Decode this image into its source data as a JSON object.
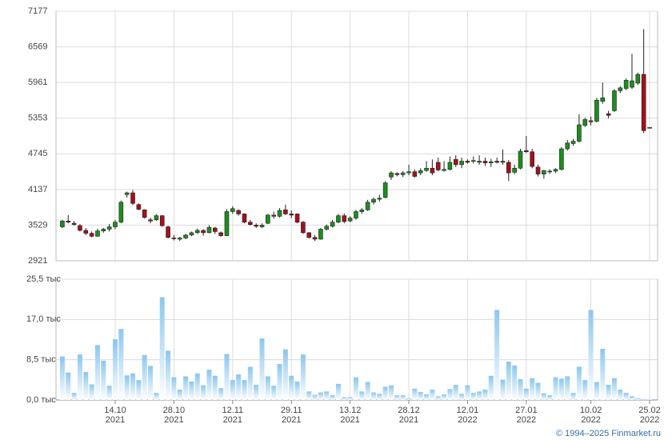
{
  "chart_data": {
    "type": "candlestick",
    "categories": [
      null,
      null,
      null,
      null,
      null,
      null,
      null,
      null,
      null,
      [
        "14.10",
        "2021"
      ],
      null,
      null,
      null,
      null,
      null,
      null,
      null,
      null,
      null,
      [
        "28.10",
        "2021"
      ],
      null,
      null,
      null,
      null,
      null,
      null,
      null,
      null,
      null,
      [
        "12.11",
        "2021"
      ],
      null,
      null,
      null,
      null,
      null,
      null,
      null,
      null,
      null,
      [
        "29.11",
        "2021"
      ],
      null,
      null,
      null,
      null,
      null,
      null,
      null,
      null,
      null,
      [
        "13.12",
        "2021"
      ],
      null,
      null,
      null,
      null,
      null,
      null,
      null,
      null,
      null,
      [
        "28.12",
        "2021"
      ],
      null,
      null,
      null,
      null,
      null,
      null,
      null,
      null,
      null,
      [
        "12.01",
        "2022"
      ],
      null,
      null,
      null,
      null,
      null,
      null,
      null,
      null,
      null,
      [
        "27.01",
        "2022"
      ],
      null,
      null,
      null,
      null,
      null,
      null,
      null,
      null,
      null,
      null,
      [
        "10.02",
        "2022"
      ],
      null,
      null,
      null,
      null,
      null,
      null,
      null,
      null,
      null,
      [
        "25.02",
        "2022"
      ]
    ],
    "open": [
      3500,
      3600,
      3560,
      3520,
      3440,
      3390,
      3340,
      3430,
      3460,
      3500,
      3580,
      4050,
      4080,
      3880,
      3790,
      3620,
      3620,
      3690,
      3500,
      3310,
      3290,
      3310,
      3360,
      3400,
      3440,
      3400,
      3480,
      3400,
      3350,
      3760,
      3780,
      3720,
      3580,
      3530,
      3500,
      3560,
      3700,
      3680,
      3790,
      3720,
      3720,
      3580,
      3400,
      3320,
      3290,
      3460,
      3510,
      3580,
      3690,
      3600,
      3650,
      3760,
      3790,
      3920,
      3970,
      4000,
      4350,
      4410,
      4390,
      4420,
      4440,
      4420,
      4460,
      4500,
      4600,
      4460,
      4480,
      4650,
      4560,
      4620,
      4620,
      4600,
      4620,
      4590,
      4620,
      4600,
      4600,
      4430,
      4500,
      4800,
      4780,
      4520,
      4400,
      4440,
      4450,
      4480,
      4830,
      4920,
      4960,
      5230,
      5310,
      5300,
      5640,
      5430,
      5480,
      5820,
      5860,
      5880,
      5950,
      6100,
      5190
    ],
    "high": [
      3620,
      3700,
      3600,
      3550,
      3480,
      3420,
      3470,
      3480,
      3550,
      3620,
      3950,
      4100,
      4130,
      3900,
      3800,
      3660,
      3720,
      3700,
      3520,
      3360,
      3330,
      3380,
      3420,
      3470,
      3460,
      3530,
      3500,
      3420,
      3800,
      3850,
      3800,
      3730,
      3620,
      3560,
      3560,
      3720,
      3760,
      3820,
      3880,
      3780,
      3730,
      3600,
      3410,
      3360,
      3480,
      3540,
      3620,
      3720,
      3730,
      3680,
      3790,
      3820,
      3960,
      4000,
      4050,
      4280,
      4450,
      4430,
      4450,
      4560,
      4480,
      4500,
      4620,
      4650,
      4680,
      4620,
      4700,
      4720,
      4680,
      4650,
      4700,
      4720,
      4680,
      4660,
      4680,
      4820,
      4640,
      4560,
      4830,
      5050,
      4830,
      4560,
      4470,
      4480,
      4500,
      4860,
      4980,
      5000,
      5420,
      5360,
      5380,
      5700,
      5960,
      5480,
      5850,
      5900,
      6030,
      6450,
      6130,
      6870,
      5200
    ],
    "low": [
      3480,
      3560,
      3520,
      3420,
      3360,
      3320,
      3330,
      3400,
      3420,
      3460,
      3560,
      4000,
      3870,
      3780,
      3640,
      3560,
      3600,
      3500,
      3300,
      3270,
      3260,
      3290,
      3340,
      3380,
      3350,
      3390,
      3380,
      3330,
      3340,
      3720,
      3690,
      3560,
      3520,
      3480,
      3480,
      3550,
      3640,
      3660,
      3700,
      3650,
      3560,
      3380,
      3300,
      3260,
      3280,
      3440,
      3490,
      3560,
      3560,
      3580,
      3620,
      3720,
      3770,
      3880,
      3930,
      3990,
      4300,
      4360,
      4350,
      4380,
      4340,
      4380,
      4440,
      4380,
      4450,
      4440,
      4460,
      4520,
      4500,
      4580,
      4580,
      4560,
      4540,
      4520,
      4580,
      4560,
      4280,
      4400,
      4480,
      4760,
      4500,
      4360,
      4320,
      4400,
      4420,
      4460,
      4800,
      4880,
      4940,
      5200,
      5230,
      5280,
      5600,
      5350,
      5460,
      5780,
      5830,
      5850,
      5920,
      5100,
      5180
    ],
    "close": [
      3600,
      3580,
      3540,
      3440,
      3390,
      3340,
      3430,
      3460,
      3500,
      3580,
      3920,
      4080,
      3900,
      3800,
      3660,
      3600,
      3690,
      3520,
      3320,
      3300,
      3310,
      3360,
      3400,
      3440,
      3400,
      3490,
      3420,
      3350,
      3760,
      3810,
      3720,
      3580,
      3540,
      3510,
      3530,
      3700,
      3680,
      3780,
      3720,
      3700,
      3580,
      3400,
      3320,
      3290,
      3460,
      3510,
      3580,
      3690,
      3590,
      3650,
      3760,
      3790,
      3920,
      3970,
      3990,
      4250,
      4420,
      4390,
      4420,
      4440,
      4360,
      4460,
      4500,
      4420,
      4470,
      4480,
      4600,
      4560,
      4620,
      4600,
      4630,
      4620,
      4590,
      4610,
      4600,
      4620,
      4420,
      4500,
      4790,
      4780,
      4530,
      4400,
      4460,
      4450,
      4480,
      4830,
      4930,
      4960,
      5240,
      5330,
      5290,
      5660,
      5700,
      5400,
      5820,
      5870,
      6000,
      5990,
      6100,
      5140,
      5195
    ],
    "up_color": "#1e8c1e",
    "down_color": "#a3101c",
    "ylim": [
      2921,
      7177
    ],
    "yticks": [
      2921,
      3529,
      4137,
      4745,
      5353,
      5961,
      6569,
      7177
    ],
    "grid": true,
    "volume": {
      "type": "bar",
      "color": "#8cc6ef",
      "values": [
        9.2,
        5.8,
        1.5,
        9.6,
        5.9,
        3.3,
        11.6,
        8.3,
        3.0,
        12.8,
        15.0,
        5.2,
        5.6,
        4.2,
        9.5,
        7.2,
        1.5,
        21.7,
        10.4,
        4.8,
        2.2,
        5.0,
        3.9,
        5.6,
        3.1,
        6.4,
        5.1,
        2.5,
        9.7,
        4.2,
        5.4,
        4.2,
        7.0,
        3.2,
        13.0,
        5.0,
        3.0,
        7.6,
        10.7,
        5.1,
        3.9,
        9.6,
        1.8,
        1.1,
        1.6,
        1.8,
        1.0,
        3.4,
        0.6,
        0.6,
        4.8,
        1.8,
        3.8,
        1.6,
        1.3,
        2.8,
        3.1,
        1.0,
        1.0,
        0.4,
        2.4,
        1.7,
        1.2,
        2.2,
        0.8,
        1.2,
        2.3,
        3.2,
        1.3,
        3.1,
        1.5,
        1.8,
        2.2,
        5.1,
        19.0,
        4.3,
        8.1,
        7.3,
        4.4,
        2.4,
        4.6,
        3.6,
        1.4,
        1.0,
        4.8,
        4.5,
        5.0,
        1.5,
        7.0,
        4.2,
        19.0,
        3.8,
        10.8,
        3.2,
        4.6,
        2.2,
        1.5,
        0.8,
        0.4,
        0.2,
        0.1
      ],
      "ylim": [
        0,
        25.5
      ],
      "yticks": [
        {
          "value": 0,
          "label": "0,0 тыс"
        },
        {
          "value": 8.5,
          "label": "8,5 тыс"
        },
        {
          "value": 17,
          "label": "17,0 тыс"
        },
        {
          "value": 25.5,
          "label": "25,5 тыс"
        }
      ]
    }
  },
  "footer": "© 1994–2025 Finmarket.ru"
}
